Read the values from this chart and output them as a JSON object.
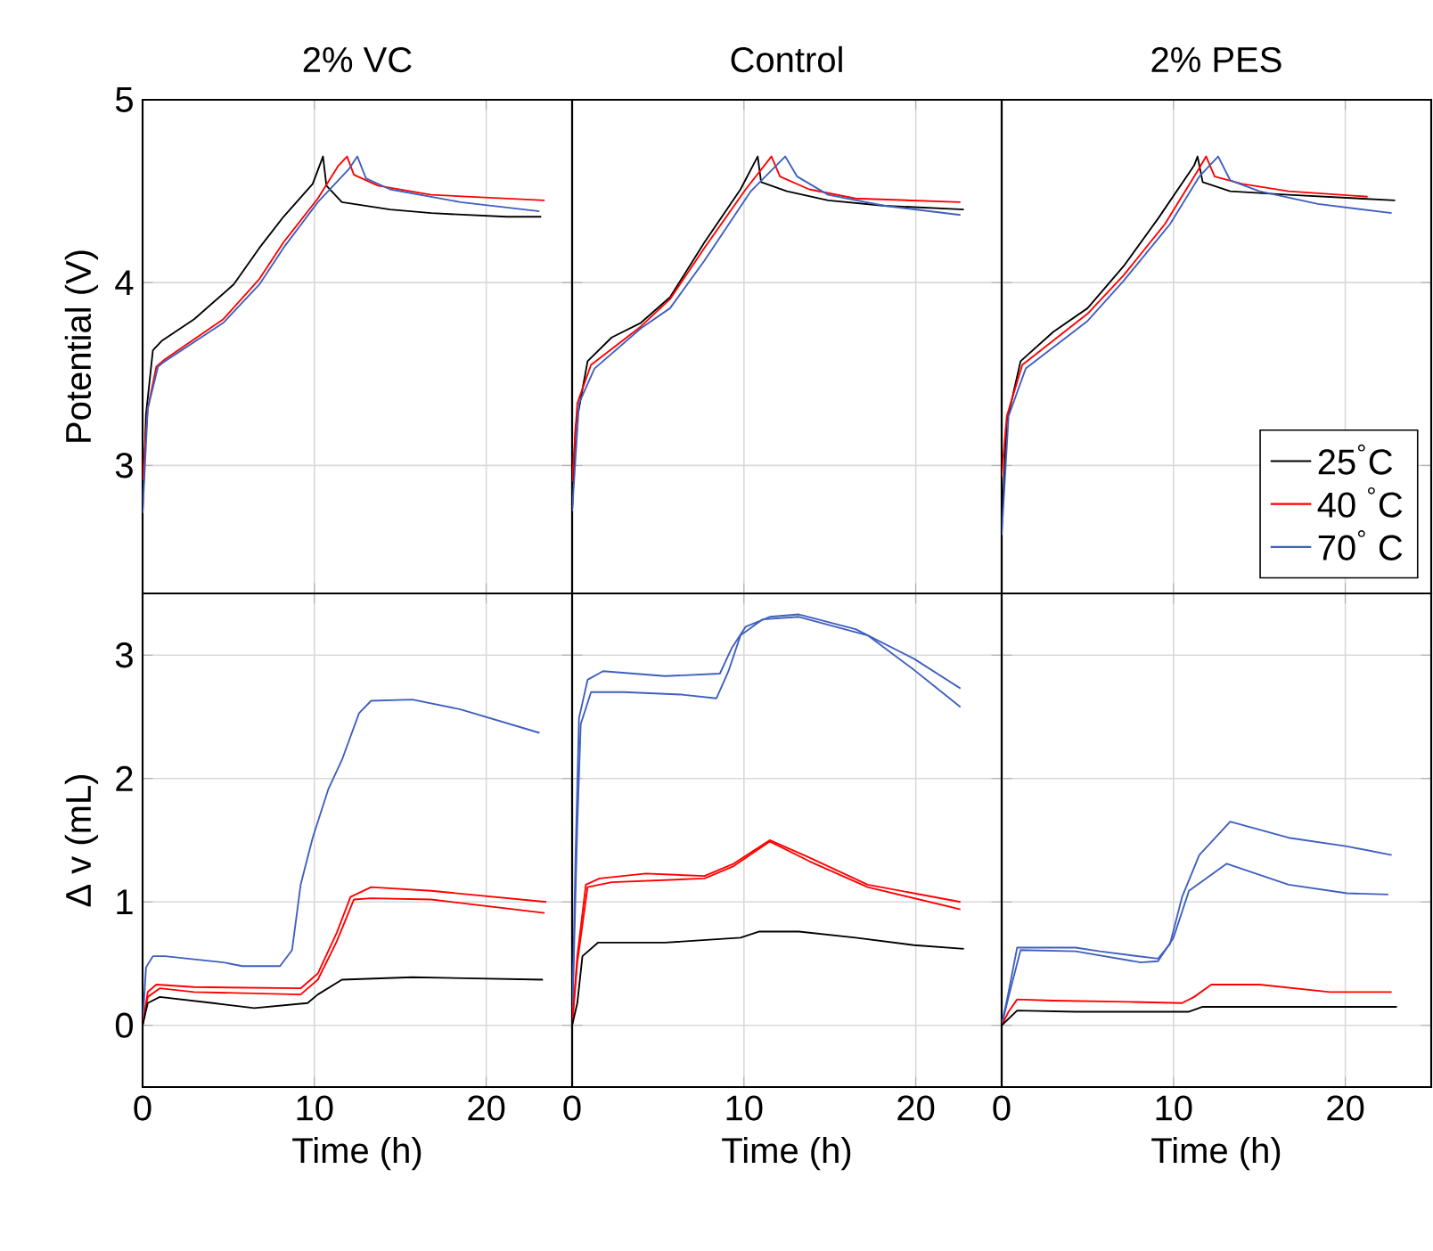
{
  "chart_data": [
    {
      "type": "line",
      "title": "2% VC",
      "ylabel": "Potential (V)",
      "xlim": [
        0,
        25
      ],
      "ylim": [
        2.3,
        5
      ],
      "xticks": [
        0,
        10,
        20
      ],
      "yticks": [
        3,
        4,
        5
      ],
      "grid": true,
      "tick_labels": "y",
      "series": [
        {
          "color": "#000000",
          "x": [
            0,
            0.2,
            0.6,
            1.1,
            3.0,
            5.3,
            6.8,
            8.2,
            9.9,
            10.5,
            10.7,
            11.6,
            14.4,
            16.8,
            21.2,
            23.2
          ],
          "values": [
            2.74,
            3.28,
            3.63,
            3.68,
            3.8,
            3.99,
            4.19,
            4.36,
            4.54,
            4.69,
            4.53,
            4.44,
            4.4,
            4.38,
            4.36,
            4.36
          ]
        },
        {
          "color": "#ff0000",
          "x": [
            0,
            0.3,
            0.8,
            1.3,
            4.7,
            6.8,
            8.2,
            10.2,
            11.4,
            11.9,
            12.3,
            13.7,
            16.8,
            23.4
          ],
          "values": [
            2.92,
            3.31,
            3.54,
            3.58,
            3.8,
            4.02,
            4.22,
            4.46,
            4.64,
            4.69,
            4.59,
            4.53,
            4.48,
            4.45
          ]
        },
        {
          "color": "#3f5fbf",
          "x": [
            0,
            0.3,
            0.9,
            1.3,
            4.7,
            6.8,
            8.2,
            10.2,
            12.0,
            12.5,
            13.0,
            14.4,
            18.5,
            23.1
          ],
          "values": [
            2.74,
            3.31,
            3.54,
            3.57,
            3.78,
            3.99,
            4.19,
            4.44,
            4.62,
            4.69,
            4.57,
            4.51,
            4.44,
            4.39
          ]
        }
      ]
    },
    {
      "type": "line",
      "title": "Control",
      "xlim": [
        0,
        25
      ],
      "ylim": [
        2.3,
        5
      ],
      "xticks": [
        0,
        10,
        20
      ],
      "yticks": [
        3,
        4,
        5
      ],
      "grid": true,
      "tick_labels": false,
      "series": [
        {
          "color": "#000000",
          "x": [
            0,
            0.2,
            0.9,
            2.3,
            4.0,
            5.7,
            7.7,
            9.8,
            10.8,
            11.0,
            12.5,
            14.9,
            18.2,
            22.8
          ],
          "values": [
            2.75,
            3.21,
            3.57,
            3.7,
            3.78,
            3.92,
            4.22,
            4.51,
            4.69,
            4.55,
            4.5,
            4.45,
            4.42,
            4.4
          ]
        },
        {
          "color": "#ff0000",
          "x": [
            0,
            0.3,
            1.1,
            4.0,
            5.7,
            7.7,
            10.1,
            11.6,
            12.1,
            13.8,
            16.5,
            22.6
          ],
          "values": [
            2.91,
            3.34,
            3.55,
            3.76,
            3.91,
            4.19,
            4.51,
            4.69,
            4.58,
            4.51,
            4.46,
            4.44
          ]
        },
        {
          "color": "#3f5fbf",
          "x": [
            0,
            0.4,
            1.3,
            4.0,
            5.7,
            7.7,
            10.4,
            12.4,
            13.1,
            14.9,
            18.2,
            22.6
          ],
          "values": [
            2.75,
            3.34,
            3.53,
            3.75,
            3.86,
            4.12,
            4.5,
            4.69,
            4.58,
            4.48,
            4.42,
            4.37
          ]
        }
      ]
    },
    {
      "type": "line",
      "title": "2% PES",
      "xlim": [
        0,
        25
      ],
      "ylim": [
        2.3,
        5
      ],
      "xticks": [
        0,
        10,
        20
      ],
      "yticks": [
        3,
        4,
        5
      ],
      "grid": true,
      "tick_labels": false,
      "legend": "bottom right",
      "series": [
        {
          "name": "25$^{°}$C",
          "color": "#000000",
          "x": [
            0,
            0.3,
            1.1,
            3.0,
            5.0,
            7.1,
            9.1,
            11.2,
            11.4,
            11.7,
            13.3,
            16.7,
            22.9
          ],
          "values": [
            2.65,
            3.24,
            3.57,
            3.73,
            3.86,
            4.09,
            4.35,
            4.64,
            4.69,
            4.55,
            4.5,
            4.48,
            4.45
          ]
        },
        {
          "name": "40 $^{°}$C",
          "color": "#ff0000",
          "x": [
            0,
            0.3,
            1.2,
            5.0,
            7.1,
            9.5,
            11.4,
            11.9,
            12.4,
            14.0,
            16.7,
            21.3
          ],
          "values": [
            2.94,
            3.27,
            3.55,
            3.83,
            4.04,
            4.32,
            4.61,
            4.69,
            4.58,
            4.54,
            4.5,
            4.47
          ]
        },
        {
          "name": "70$^{°}$ C",
          "color": "#3f5fbf",
          "x": [
            0,
            0.4,
            1.4,
            5.0,
            7.1,
            9.8,
            11.5,
            12.6,
            13.3,
            15.0,
            18.4,
            22.7
          ],
          "values": [
            2.62,
            3.27,
            3.53,
            3.79,
            4.01,
            4.32,
            4.58,
            4.69,
            4.56,
            4.5,
            4.43,
            4.38
          ]
        }
      ]
    },
    {
      "type": "line",
      "xlabel": "Time (h)",
      "ylabel": "Δ v (mL)",
      "xlim": [
        0,
        25
      ],
      "ylim": [
        -0.5,
        3.5
      ],
      "xticks": [
        0,
        10,
        20
      ],
      "yticks": [
        0,
        1,
        2,
        3
      ],
      "grid": true,
      "series": [
        {
          "color": "#3f5fbf",
          "x": [
            0,
            0.2,
            0.6,
            1.3,
            4.7,
            5.8,
            8.0,
            8.7,
            9.2,
            9.9,
            10.8,
            11.6,
            12.6,
            13.3,
            15.7,
            18.5,
            23.1
          ],
          "values": [
            0,
            0.47,
            0.56,
            0.56,
            0.51,
            0.48,
            0.48,
            0.61,
            1.14,
            1.52,
            1.91,
            2.15,
            2.53,
            2.63,
            2.64,
            2.56,
            2.37
          ]
        },
        {
          "color": "#ff0000",
          "x": [
            0,
            0.3,
            0.8,
            3.0,
            9.2,
            10.2,
            11.3,
            12.1,
            13.3,
            16.8,
            23.5
          ],
          "values": [
            0,
            0.27,
            0.33,
            0.31,
            0.3,
            0.42,
            0.75,
            1.04,
            1.12,
            1.09,
            1.0
          ]
        },
        {
          "color": "#ff0000",
          "x": [
            0,
            0.3,
            1.0,
            3.0,
            9.2,
            10.2,
            11.3,
            12.3,
            13.3,
            16.8,
            23.4
          ],
          "values": [
            0,
            0.23,
            0.3,
            0.27,
            0.25,
            0.37,
            0.68,
            1.02,
            1.03,
            1.02,
            0.91
          ]
        },
        {
          "color": "#000000",
          "x": [
            0,
            0.3,
            1.0,
            4.1,
            6.5,
            9.6,
            10.2,
            11.6,
            15.7,
            23.3
          ],
          "values": [
            0,
            0.18,
            0.23,
            0.18,
            0.14,
            0.18,
            0.25,
            0.37,
            0.39,
            0.37
          ]
        }
      ]
    },
    {
      "type": "line",
      "xlabel": "Time (h)",
      "xlim": [
        0,
        25
      ],
      "ylim": [
        -0.5,
        3.5
      ],
      "xticks": [
        0,
        10,
        20
      ],
      "yticks": [
        0,
        1,
        2,
        3
      ],
      "grid": true,
      "tick_labels": "x",
      "series": [
        {
          "color": "#3f5fbf",
          "x": [
            0,
            0.2,
            0.4,
            0.9,
            1.8,
            5.4,
            8.6,
            9.3,
            10.1,
            11.5,
            13.2,
            16.5,
            19.9,
            22.6
          ],
          "values": [
            0,
            1.38,
            2.49,
            2.8,
            2.87,
            2.83,
            2.85,
            3.06,
            3.23,
            3.31,
            3.33,
            3.21,
            2.97,
            2.73
          ]
        },
        {
          "color": "#3f5fbf",
          "x": [
            0,
            0.3,
            0.5,
            1.1,
            3.0,
            6.4,
            8.4,
            9.1,
            9.8,
            11.1,
            13.2,
            17.2,
            19.9,
            22.6
          ],
          "values": [
            0,
            1.62,
            2.44,
            2.7,
            2.7,
            2.68,
            2.65,
            2.87,
            3.16,
            3.29,
            3.31,
            3.16,
            2.88,
            2.58
          ]
        },
        {
          "color": "#ff0000",
          "x": [
            0,
            0.3,
            0.8,
            1.6,
            4.3,
            7.7,
            9.4,
            11.5,
            13.8,
            17.2,
            22.6
          ],
          "values": [
            0,
            0.56,
            1.14,
            1.19,
            1.23,
            1.21,
            1.31,
            1.5,
            1.36,
            1.14,
            1.0
          ]
        },
        {
          "color": "#ff0000",
          "x": [
            0,
            0.3,
            0.9,
            2.3,
            7.7,
            9.4,
            11.5,
            13.8,
            17.2,
            22.6
          ],
          "values": [
            0,
            0.51,
            1.12,
            1.16,
            1.19,
            1.29,
            1.49,
            1.33,
            1.12,
            0.94
          ]
        },
        {
          "color": "#000000",
          "x": [
            0,
            0.3,
            0.6,
            1.5,
            5.4,
            9.8,
            10.9,
            13.2,
            16.5,
            19.9,
            22.8
          ],
          "values": [
            0,
            0.18,
            0.56,
            0.67,
            0.67,
            0.71,
            0.76,
            0.76,
            0.71,
            0.65,
            0.62
          ]
        }
      ]
    },
    {
      "type": "line",
      "xlabel": "Time (h)",
      "xlim": [
        0,
        25
      ],
      "ylim": [
        -0.5,
        3.5
      ],
      "xticks": [
        0,
        10,
        20
      ],
      "yticks": [
        0,
        1,
        2,
        3
      ],
      "grid": true,
      "tick_labels": "x",
      "series": [
        {
          "color": "#3f5fbf",
          "x": [
            0,
            0.4,
            0.9,
            4.3,
            5.7,
            9.1,
            9.8,
            10.5,
            11.5,
            13.3,
            16.7,
            20.1,
            22.7
          ],
          "values": [
            0,
            0.27,
            0.63,
            0.63,
            0.6,
            0.54,
            0.66,
            1.04,
            1.38,
            1.65,
            1.52,
            1.45,
            1.38
          ]
        },
        {
          "color": "#3f5fbf",
          "x": [
            0,
            0.4,
            1.1,
            4.3,
            8.1,
            9.1,
            10.0,
            10.9,
            13.1,
            16.7,
            20.1,
            22.5
          ],
          "values": [
            0,
            0.23,
            0.61,
            0.6,
            0.51,
            0.52,
            0.71,
            1.09,
            1.31,
            1.14,
            1.07,
            1.06
          ]
        },
        {
          "color": "#ff0000",
          "x": [
            0,
            0.4,
            0.9,
            3.0,
            7.4,
            10.5,
            11.2,
            12.2,
            15.0,
            19.1,
            22.7
          ],
          "values": [
            0,
            0.11,
            0.21,
            0.2,
            0.19,
            0.18,
            0.23,
            0.33,
            0.33,
            0.27,
            0.27
          ]
        },
        {
          "color": "#000000",
          "x": [
            0,
            0.9,
            4.3,
            10.9,
            11.7,
            16.7,
            23.0
          ],
          "values": [
            0,
            0.12,
            0.11,
            0.11,
            0.15,
            0.15,
            0.15
          ]
        }
      ]
    }
  ]
}
